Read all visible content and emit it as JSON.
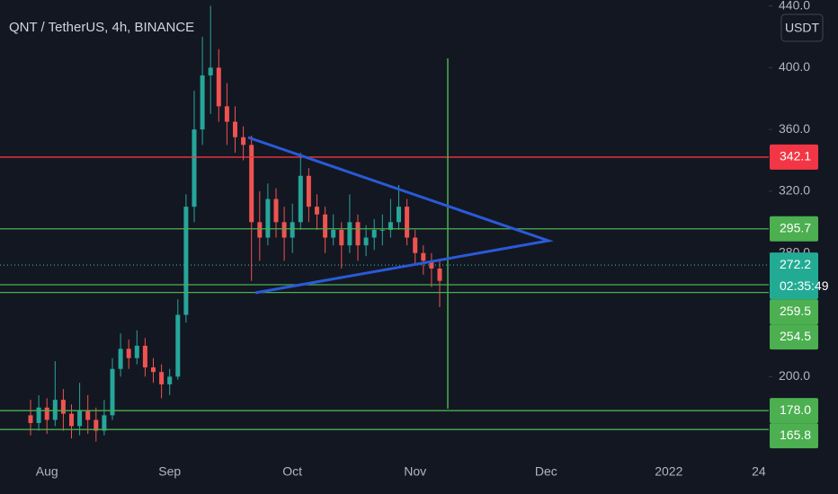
{
  "chart_data": {
    "type": "candlestick",
    "title": "QNT / TetherUS, 4h, BINANCE",
    "currency": "USDT",
    "categories": [
      null,
      null,
      "Aug",
      null,
      null,
      null,
      null,
      null,
      null,
      null,
      null,
      null,
      null,
      null,
      null,
      null,
      null,
      "Sep",
      null,
      null,
      null,
      null,
      null,
      null,
      null,
      null,
      null,
      null,
      null,
      null,
      null,
      null,
      "Oct",
      null,
      null,
      null,
      null,
      null,
      null,
      null,
      null,
      null,
      null,
      null,
      null,
      null,
      null,
      "Nov",
      null,
      null,
      null,
      null,
      null,
      null,
      null,
      null,
      null,
      null,
      null,
      null,
      null,
      null,
      null,
      "Dec",
      null,
      null,
      null,
      null,
      null,
      null,
      null,
      null,
      null,
      null,
      null,
      null,
      null,
      null,
      "2022",
      null,
      null,
      null,
      null,
      null,
      null,
      null,
      null,
      null,
      null,
      "24",
      null
    ],
    "open": [
      175,
      170,
      180,
      172,
      185,
      176,
      168,
      178,
      172,
      165,
      175,
      205,
      218,
      212,
      220,
      206,
      203,
      195,
      200,
      240,
      310,
      360,
      395,
      400,
      375,
      365,
      355,
      350,
      300,
      290,
      315,
      300,
      290,
      300,
      330,
      310,
      305,
      290,
      295,
      285,
      300,
      285,
      290,
      295,
      295,
      300,
      310,
      290,
      280,
      275,
      270,
      null,
      null,
      null,
      null,
      null,
      null,
      null,
      null,
      null,
      null,
      null,
      null,
      null,
      null,
      null,
      null,
      null,
      null,
      null,
      null,
      null,
      null,
      null,
      null,
      null,
      null,
      null,
      null,
      null,
      null,
      null,
      null,
      null,
      null,
      null,
      null,
      null,
      null,
      null,
      null
    ],
    "high": [
      185,
      188,
      186,
      210,
      192,
      182,
      196,
      188,
      180,
      185,
      212,
      228,
      224,
      230,
      225,
      212,
      208,
      205,
      250,
      318,
      385,
      420,
      440,
      412,
      390,
      375,
      362,
      356,
      320,
      325,
      322,
      310,
      312,
      345,
      335,
      318,
      310,
      305,
      300,
      318,
      305,
      298,
      302,
      305,
      315,
      324,
      315,
      295,
      285,
      280,
      276,
      null,
      null,
      null,
      null,
      null,
      null,
      null,
      null,
      null,
      null,
      null,
      null,
      null,
      null,
      null,
      null,
      null,
      null,
      null,
      null,
      null,
      null,
      null,
      null,
      null,
      null,
      null,
      null,
      null,
      null,
      null,
      null,
      null,
      null,
      null,
      null,
      null,
      null,
      null,
      null
    ],
    "low": [
      162,
      165,
      163,
      168,
      165,
      160,
      162,
      163,
      158,
      162,
      172,
      200,
      205,
      208,
      200,
      196,
      186,
      188,
      198,
      235,
      300,
      350,
      370,
      365,
      350,
      345,
      340,
      262,
      275,
      285,
      290,
      275,
      280,
      295,
      300,
      295,
      280,
      285,
      270,
      280,
      275,
      278,
      282,
      285,
      290,
      295,
      285,
      272,
      266,
      258,
      245,
      null,
      null,
      null,
      null,
      null,
      null,
      null,
      null,
      null,
      null,
      null,
      null,
      null,
      null,
      null,
      null,
      null,
      null,
      null,
      null,
      null,
      null,
      null,
      null,
      null,
      null,
      null,
      null,
      null,
      null,
      null,
      null,
      null,
      null,
      null,
      null,
      null,
      null,
      null,
      null
    ],
    "close": [
      170,
      180,
      172,
      185,
      176,
      168,
      178,
      172,
      165,
      175,
      205,
      218,
      212,
      220,
      206,
      203,
      195,
      200,
      240,
      310,
      360,
      395,
      400,
      375,
      365,
      355,
      350,
      300,
      290,
      315,
      300,
      290,
      300,
      330,
      310,
      305,
      290,
      295,
      285,
      300,
      285,
      290,
      295,
      295,
      300,
      310,
      290,
      280,
      275,
      270,
      262,
      null,
      null,
      null,
      null,
      null,
      null,
      null,
      null,
      null,
      null,
      null,
      null,
      null,
      null,
      null,
      null,
      null,
      null,
      null,
      null,
      null,
      null,
      null,
      null,
      null,
      null,
      null,
      null,
      null,
      null,
      null,
      null,
      null,
      null,
      null,
      null,
      null,
      null,
      null,
      null
    ],
    "up_color": "#26a69a",
    "down_color": "#ef5350",
    "ylim": [
      150.2,
      443.8
    ],
    "yticks": [
      {
        "value": 440,
        "label": "440.0"
      },
      {
        "value": 400,
        "label": "400.0"
      },
      {
        "value": 360,
        "label": "360.0"
      },
      {
        "value": 320,
        "label": "320.0"
      },
      {
        "value": 280,
        "label": "280.0"
      },
      {
        "value": 200,
        "label": "200.0"
      }
    ],
    "levels": [
      {
        "value": 342.1,
        "label": "342.1",
        "color": "#f23645"
      },
      {
        "value": 295.7,
        "label": "295.7",
        "color": "#4caf50"
      },
      {
        "value": 272.2,
        "label": "272.2",
        "countdown": "02:35:49",
        "color": "#22ab94",
        "style": "dotted"
      },
      {
        "value": 259.5,
        "label": "259.5",
        "color": "#4caf50"
      },
      {
        "value": 254.5,
        "label": "254.5",
        "color": "#4caf50"
      },
      {
        "value": 178,
        "label": "178.0",
        "color": "#4caf50"
      },
      {
        "value": 165.8,
        "label": "165.8",
        "color": "#4caf50"
      }
    ]
  }
}
